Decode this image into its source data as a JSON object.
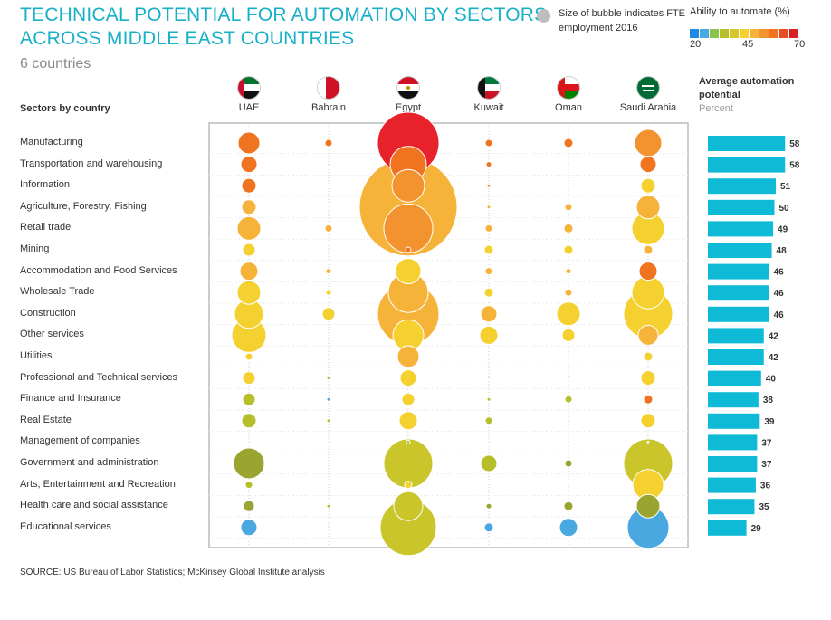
{
  "title_line1": "TECHNICAL POTENTIAL FOR AUTOMATION BY SECTORS",
  "title_line2": "ACROSS MIDDLE EAST COUNTRIES",
  "subtitle": "6 countries",
  "legend_size_text_line1": "Size of bubble indicates FTE",
  "legend_size_text_line2": "employment 2016",
  "legend_scale_label": "Ability to automate (%)",
  "legend_scale_ticks": [
    "20",
    "45",
    "70"
  ],
  "legend_scale_colors": [
    "#1e88e5",
    "#4aa8e0",
    "#8bc34a",
    "#b5bf2a",
    "#d7c82a",
    "#f5d130",
    "#f6b33a",
    "#f39330",
    "#f07320",
    "#e84c22",
    "#d91f26"
  ],
  "sectors_header": "Sectors by country",
  "avg_header_line1": "Average automation",
  "avg_header_line2": "potential",
  "avg_header_unit": "Percent",
  "source": "SOURCE: US Bureau of Labor Statistics; McKinsey Global Institute analysis",
  "countries": [
    {
      "name": "UAE",
      "flag": "uae"
    },
    {
      "name": "Bahrain",
      "flag": "bahrain"
    },
    {
      "name": "Egypt",
      "flag": "egypt"
    },
    {
      "name": "Kuwait",
      "flag": "kuwait"
    },
    {
      "name": "Oman",
      "flag": "oman"
    },
    {
      "name": "Saudi Arabia",
      "flag": "saudi"
    }
  ],
  "chart_data": {
    "type": "bubble-matrix",
    "color_scale": {
      "min": 20,
      "max": 70,
      "label": "Ability to automate (%)"
    },
    "size_meaning": "Size of bubble indicates FTE employment 2016",
    "sectors": [
      {
        "name": "Manufacturing",
        "avg": 58,
        "bubbles": [
          [
            12,
            "#f07320"
          ],
          [
            4,
            "#f07320"
          ],
          [
            34,
            "#e8222a"
          ],
          [
            4,
            "#f07320"
          ],
          [
            5,
            "#f07320"
          ],
          [
            15,
            "#f39330"
          ]
        ]
      },
      {
        "name": "Transportation and warehousing",
        "avg": 58,
        "bubbles": [
          [
            9,
            "#f07320"
          ],
          [
            1,
            "#f07320"
          ],
          [
            20,
            "#f07320"
          ],
          [
            3,
            "#f07320"
          ],
          [
            1,
            "#f07320"
          ],
          [
            9,
            "#f07320"
          ]
        ]
      },
      {
        "name": "Information",
        "avg": 51,
        "bubbles": [
          [
            8,
            "#f07320"
          ],
          [
            1,
            "#f39330"
          ],
          [
            18,
            "#f39330"
          ],
          [
            2,
            "#f39330"
          ],
          [
            1,
            "#f39330"
          ],
          [
            8,
            "#f5d130"
          ]
        ]
      },
      {
        "name": "Agriculture, Forestry, Fishing",
        "avg": 50,
        "bubbles": [
          [
            8,
            "#f6b33a"
          ],
          [
            1,
            "#f6b33a"
          ],
          [
            54,
            "#f6b33a"
          ],
          [
            2,
            "#f6b33a"
          ],
          [
            4,
            "#f6b33a"
          ],
          [
            13,
            "#f6b33a"
          ]
        ]
      },
      {
        "name": "Retail trade",
        "avg": 49,
        "bubbles": [
          [
            13,
            "#f6b33a"
          ],
          [
            4,
            "#f6b33a"
          ],
          [
            27,
            "#f39330"
          ],
          [
            4,
            "#f6b33a"
          ],
          [
            5,
            "#f6b33a"
          ],
          [
            18,
            "#f5d130"
          ]
        ]
      },
      {
        "name": "Mining",
        "avg": 48,
        "bubbles": [
          [
            7,
            "#f5d130"
          ],
          [
            1,
            "#f5d130"
          ],
          [
            3,
            "#f07320"
          ],
          [
            5,
            "#f5d130"
          ],
          [
            5,
            "#f5d130"
          ],
          [
            5,
            "#f6b33a"
          ]
        ]
      },
      {
        "name": "Accommodation and Food Services",
        "avg": 46,
        "bubbles": [
          [
            10,
            "#f6b33a"
          ],
          [
            3,
            "#f6b33a"
          ],
          [
            14,
            "#f5d130"
          ],
          [
            4,
            "#f6b33a"
          ],
          [
            3,
            "#f6b33a"
          ],
          [
            10,
            "#f07320"
          ]
        ]
      },
      {
        "name": "Wholesale Trade",
        "avg": 46,
        "bubbles": [
          [
            13,
            "#f5d130"
          ],
          [
            3,
            "#f5d130"
          ],
          [
            22,
            "#f6b33a"
          ],
          [
            5,
            "#f5d130"
          ],
          [
            4,
            "#f6b33a"
          ],
          [
            18,
            "#f5d130"
          ]
        ]
      },
      {
        "name": "Construction",
        "avg": 46,
        "bubbles": [
          [
            16,
            "#f5d130"
          ],
          [
            7,
            "#f5d130"
          ],
          [
            34,
            "#f6b33a"
          ],
          [
            9,
            "#f6b33a"
          ],
          [
            13,
            "#f5d130"
          ],
          [
            27,
            "#f5d130"
          ]
        ]
      },
      {
        "name": "Other services",
        "avg": 42,
        "bubbles": [
          [
            19,
            "#f5d130"
          ],
          [
            1,
            "#f5d130"
          ],
          [
            17,
            "#f5d130"
          ],
          [
            10,
            "#f5d130"
          ],
          [
            7,
            "#f5d130"
          ],
          [
            11,
            "#f6b33a"
          ]
        ]
      },
      {
        "name": "Utilities",
        "avg": 42,
        "bubbles": [
          [
            4,
            "#f5d130"
          ],
          [
            1,
            "#f5d130"
          ],
          [
            12,
            "#f6b33a"
          ],
          [
            1,
            "#f5d130"
          ],
          [
            1,
            "#f5d130"
          ],
          [
            5,
            "#f5d130"
          ]
        ]
      },
      {
        "name": "Professional and Technical services",
        "avg": 40,
        "bubbles": [
          [
            7,
            "#f5d130"
          ],
          [
            2,
            "#b5bf2a"
          ],
          [
            9,
            "#f5d130"
          ],
          [
            1,
            "#b5bf2a"
          ],
          [
            1,
            "#b5bf2a"
          ],
          [
            8,
            "#f5d130"
          ]
        ]
      },
      {
        "name": "Finance and Insurance",
        "avg": 38,
        "bubbles": [
          [
            7,
            "#b5bf2a"
          ],
          [
            2,
            "#4aa8e0"
          ],
          [
            7,
            "#f5d130"
          ],
          [
            2,
            "#b5bf2a"
          ],
          [
            4,
            "#b5bf2a"
          ],
          [
            5,
            "#f07320"
          ]
        ]
      },
      {
        "name": "Real Estate",
        "avg": 39,
        "bubbles": [
          [
            8,
            "#b5bf2a"
          ],
          [
            2,
            "#b5bf2a"
          ],
          [
            10,
            "#f5d130"
          ],
          [
            4,
            "#b5bf2a"
          ],
          [
            1,
            "#b5bf2a"
          ],
          [
            8,
            "#f5d130"
          ]
        ]
      },
      {
        "name": "Management of companies",
        "avg": 37,
        "bubbles": [
          [
            1,
            "#b5bf2a"
          ],
          [
            1,
            "#b5bf2a"
          ],
          [
            2,
            "#b5bf2a"
          ],
          [
            1,
            "#b5bf2a"
          ],
          [
            1,
            "#b5bf2a"
          ],
          [
            1,
            "#b5bf2a"
          ]
        ]
      },
      {
        "name": "Government and administration",
        "avg": 37,
        "bubbles": [
          [
            17,
            "#9aa430"
          ],
          [
            1,
            "#b5bf2a"
          ],
          [
            27,
            "#c9c52a"
          ],
          [
            9,
            "#b5bf2a"
          ],
          [
            4,
            "#9aa430"
          ],
          [
            27,
            "#c9c52a"
          ]
        ]
      },
      {
        "name": "Arts, Entertainment and Recreation",
        "avg": 36,
        "bubbles": [
          [
            4,
            "#b5bf2a"
          ],
          [
            1,
            "#b5bf2a"
          ],
          [
            4,
            "#f5d130"
          ],
          [
            1,
            "#b5bf2a"
          ],
          [
            1,
            "#b5bf2a"
          ],
          [
            17,
            "#f5d130"
          ]
        ]
      },
      {
        "name": "Health care and social assistance",
        "avg": 35,
        "bubbles": [
          [
            6,
            "#9aa430"
          ],
          [
            2,
            "#b5bf2a"
          ],
          [
            16,
            "#c9c52a"
          ],
          [
            3,
            "#9aa430"
          ],
          [
            5,
            "#9aa430"
          ],
          [
            13,
            "#9aa430"
          ]
        ]
      },
      {
        "name": "Educational services",
        "avg": 29,
        "bubbles": [
          [
            9,
            "#4aa8e0"
          ],
          [
            1,
            "#4aa8e0"
          ],
          [
            31,
            "#c9c52a"
          ],
          [
            5,
            "#4aa8e0"
          ],
          [
            10,
            "#4aa8e0"
          ],
          [
            23,
            "#4aa8e0"
          ]
        ]
      }
    ],
    "avg_axis_max": 70
  }
}
